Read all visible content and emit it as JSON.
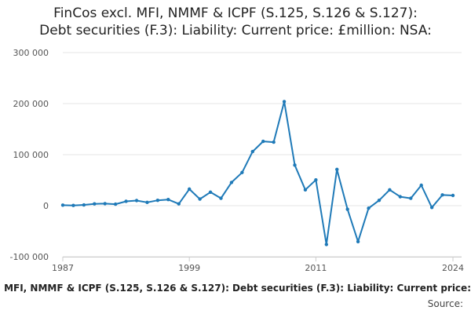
{
  "title_line1": "FinCos excl. MFI, NMMF & ICPF (S.125, S.126 & S.127):",
  "title_line2": "Debt securities (F.3): Liability: Current price: £million: NSA:",
  "footer_series": "FinCos excl. MFI, NMMF & ICPF (S.125, S.126 & S.127): Debt securities (F.3): Liability: Current price:",
  "source_label": "Source:",
  "chart_data": {
    "type": "line",
    "series_color": "#1f7ab8",
    "grid": true,
    "ylim": [
      -100000,
      300000
    ],
    "y_ticks": [
      {
        "value": -100000,
        "label": "-100 000"
      },
      {
        "value": 0,
        "label": "0"
      },
      {
        "value": 100000,
        "label": "100 000"
      },
      {
        "value": 200000,
        "label": "200 000"
      },
      {
        "value": 300000,
        "label": "300 000"
      }
    ],
    "xlim": [
      1987,
      2024
    ],
    "x_ticks": [
      {
        "value": 1987,
        "label": "1987"
      },
      {
        "value": 1999,
        "label": "1999"
      },
      {
        "value": 2011,
        "label": "2011"
      },
      {
        "value": 2024,
        "label": "2024"
      }
    ],
    "x": [
      1987,
      1988,
      1989,
      1990,
      1991,
      1992,
      1993,
      1994,
      1995,
      1996,
      1997,
      1998,
      1999,
      2000,
      2001,
      2002,
      2003,
      2004,
      2005,
      2006,
      2007,
      2008,
      2009,
      2010,
      2011,
      2012,
      2013,
      2014,
      2015,
      2016,
      2017,
      2018,
      2019,
      2020,
      2021,
      2022,
      2023,
      2024
    ],
    "y": [
      1000,
      500,
      1500,
      3500,
      4000,
      3000,
      8500,
      10000,
      6500,
      10500,
      12000,
      3500,
      32500,
      13000,
      26500,
      14500,
      45500,
      65000,
      106000,
      126000,
      124500,
      204000,
      79500,
      31000,
      50500,
      -76000,
      71000,
      -7000,
      -70500,
      -5000,
      10500,
      31000,
      17500,
      14500,
      40000,
      -3500,
      21000,
      20000
    ]
  }
}
